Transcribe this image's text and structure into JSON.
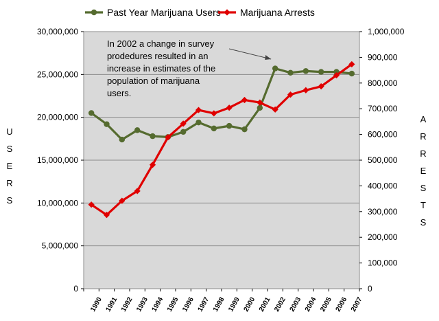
{
  "chart_data": {
    "type": "line",
    "categories": [
      "1990",
      "1991",
      "1992",
      "1993",
      "1994",
      "1995",
      "1996",
      "1997",
      "1998",
      "1999",
      "2000",
      "2001",
      "2002",
      "2003",
      "2004",
      "2005",
      "2006",
      "2007"
    ],
    "series": [
      {
        "name": "Past Year Marijuana Users",
        "axis": "left",
        "color": "#556b2f",
        "marker": "circle",
        "values": [
          20500000,
          19200000,
          17400000,
          18500000,
          17800000,
          17700000,
          18300000,
          19400000,
          18700000,
          19000000,
          18600000,
          21100000,
          25700000,
          25200000,
          25400000,
          25300000,
          25300000,
          25100000
        ]
      },
      {
        "name": "Marijuana Arrests",
        "axis": "right",
        "color": "#e00000",
        "marker": "diamond",
        "values": [
          327000,
          287000,
          342000,
          380000,
          482000,
          589000,
          642000,
          695000,
          682000,
          704000,
          734000,
          724000,
          697000,
          755000,
          772000,
          787000,
          830000,
          873000
        ]
      }
    ],
    "y_left": {
      "label_letters": [
        "U",
        "S",
        "E",
        "R",
        "S"
      ],
      "range": [
        0,
        30000000
      ],
      "ticks": [
        "0",
        "5,000,000",
        "10,000,000",
        "15,000,000",
        "20,000,000",
        "25,000,000",
        "30,000,000"
      ]
    },
    "y_right": {
      "label_letters": [
        "A",
        "R",
        "R",
        "E",
        "S",
        "T",
        "S"
      ],
      "range": [
        0,
        1000000
      ],
      "ticks": [
        "0",
        "100,000",
        "200,000",
        "300,000",
        "400,000",
        "500,000",
        "600,000",
        "700,000",
        "800,000",
        "900,000",
        "1,000,000"
      ]
    },
    "annotation": {
      "lines": [
        "In 2002 a change in  survey",
        "prodedures resulted in an",
        "increase in estimates of the",
        "population of  marijuana",
        "users."
      ],
      "points_to": "2002"
    },
    "gridlines": "horizontal",
    "legend_position": "top",
    "plot_background": "#d9d9d9"
  }
}
